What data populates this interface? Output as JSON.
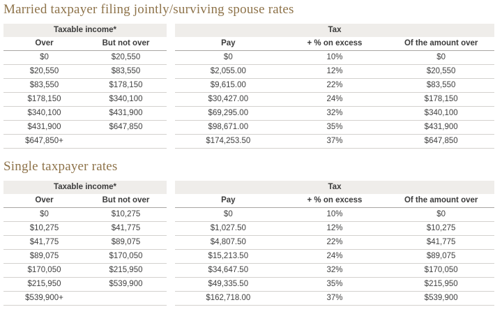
{
  "colors": {
    "title": "#8e734a",
    "group_header_bg": "#efedea",
    "text": "#3f3f3f",
    "header_rule": "#a8a6a2",
    "row_rule": "#d3d1ce"
  },
  "sections": [
    {
      "title": "Married taxpayer filing jointly/surviving spouse rates",
      "income_table": {
        "group_header": "Taxable income*",
        "columns": [
          "Over",
          "But not over"
        ],
        "rows": [
          [
            "$0",
            "$20,550"
          ],
          [
            "$20,550",
            "$83,550"
          ],
          [
            "$83,550",
            "$178,150"
          ],
          [
            "$178,150",
            "$340,100"
          ],
          [
            "$340,100",
            "$431,900"
          ],
          [
            "$431,900",
            "$647,850"
          ],
          [
            "$647,850+",
            ""
          ]
        ]
      },
      "tax_table": {
        "group_header": "Tax",
        "columns": [
          "Pay",
          "+ % on excess",
          "Of the amount over"
        ],
        "rows": [
          [
            "$0",
            "10%",
            "$0"
          ],
          [
            "$2,055.00",
            "12%",
            "$20,550"
          ],
          [
            "$9,615.00",
            "22%",
            "$83,550"
          ],
          [
            "$30,427.00",
            "24%",
            "$178,150"
          ],
          [
            "$69,295.00",
            "32%",
            "$340,100"
          ],
          [
            "$98,671.00",
            "35%",
            "$431,900"
          ],
          [
            "$174,253.50",
            "37%",
            "$647,850"
          ]
        ]
      }
    },
    {
      "title": "Single taxpayer rates",
      "income_table": {
        "group_header": "Taxable income*",
        "columns": [
          "Over",
          "But not over"
        ],
        "rows": [
          [
            "$0",
            "$10,275"
          ],
          [
            "$10,275",
            "$41,775"
          ],
          [
            "$41,775",
            "$89,075"
          ],
          [
            "$89,075",
            "$170,050"
          ],
          [
            "$170,050",
            "$215,950"
          ],
          [
            "$215,950",
            "$539,900"
          ],
          [
            "$539,900+",
            ""
          ]
        ]
      },
      "tax_table": {
        "group_header": "Tax",
        "columns": [
          "Pay",
          "+ % on excess",
          "Of the amount over"
        ],
        "rows": [
          [
            "$0",
            "10%",
            "$0"
          ],
          [
            "$1,027.50",
            "12%",
            "$10,275"
          ],
          [
            "$4,807.50",
            "22%",
            "$41,775"
          ],
          [
            "$15,213.50",
            "24%",
            "$89,075"
          ],
          [
            "$34,647.50",
            "32%",
            "$170,050"
          ],
          [
            "$49,335.50",
            "35%",
            "$215,950"
          ],
          [
            "$162,718.00",
            "37%",
            "$539,900"
          ]
        ]
      }
    }
  ]
}
